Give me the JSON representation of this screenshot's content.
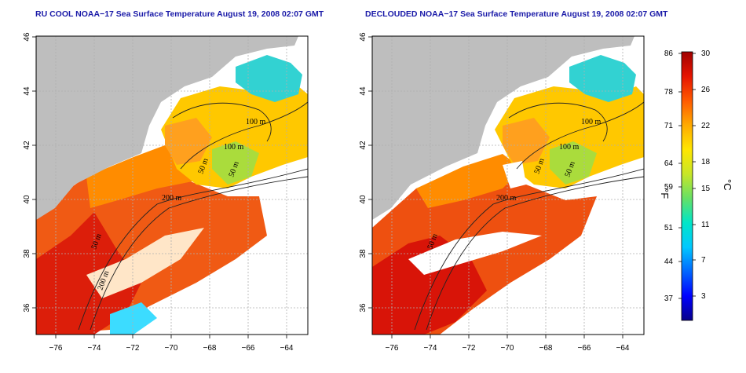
{
  "panels": [
    {
      "title": "RU COOL NOAA−17 Sea Surface Temperature August 19, 2008 02:07 GMT",
      "contour_labels": [
        "100 m",
        "100 m",
        "50 m",
        "200 m",
        "200 m",
        "50 m",
        "50 m"
      ]
    },
    {
      "title": "DECLOUDED NOAA−17 Sea Surface Temperature August 19, 2008 02:07 GMT",
      "contour_labels": [
        "100 m",
        "100 m",
        "50 m",
        "200 m",
        "50 m",
        "50 m"
      ]
    }
  ],
  "axes": {
    "lon_ticks": [
      "−76",
      "−74",
      "−72",
      "−70",
      "−68",
      "−66",
      "−64"
    ],
    "lat_ticks": [
      "46",
      "44",
      "42",
      "40",
      "38",
      "36"
    ]
  },
  "colorbar": {
    "fahrenheit_ticks": [
      "86",
      "78",
      "71",
      "64",
      "59",
      "51",
      "44",
      "37"
    ],
    "celsius_ticks": [
      "30",
      "26",
      "22",
      "18",
      "15",
      "11",
      "7",
      "3"
    ],
    "left_unit": "°F",
    "right_unit": "°C",
    "colors": [
      "#08008a",
      "#0000ff",
      "#0066ff",
      "#00c8ff",
      "#00e6c8",
      "#66e066",
      "#c8e628",
      "#ffe600",
      "#ffaa00",
      "#ff5a00",
      "#e61400",
      "#a00000"
    ]
  },
  "colors": {
    "land": "#bebebe",
    "title": "#1a1aa8",
    "grid": "#b0b0b0"
  }
}
